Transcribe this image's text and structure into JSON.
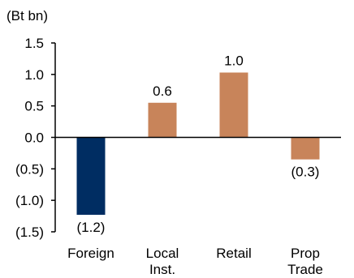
{
  "chart_data": {
    "type": "bar",
    "unit_label": "(Bt bn)",
    "categories": [
      [
        "Foreign"
      ],
      [
        "Local",
        "Inst."
      ],
      [
        "Retail"
      ],
      [
        "Prop",
        "Trade"
      ]
    ],
    "values": [
      -1.23,
      0.55,
      1.03,
      -0.35
    ],
    "data_labels": [
      "(1.2)",
      "0.6",
      "1.0",
      "(0.3)"
    ],
    "bar_colors": [
      "#002d62",
      "#c8845a",
      "#c8845a",
      "#c8845a"
    ],
    "yticks": [
      1.5,
      1.0,
      0.5,
      0.0,
      -0.5,
      -1.0,
      -1.5
    ],
    "ytick_labels": [
      "1.5",
      "1.0",
      "0.5",
      "0.0",
      "(0.5)",
      "(1.0)",
      "(1.5)"
    ],
    "ylim": [
      -1.5,
      1.5
    ],
    "title": "",
    "xlabel": "",
    "ylabel": "",
    "grid": false,
    "legend": "none"
  }
}
